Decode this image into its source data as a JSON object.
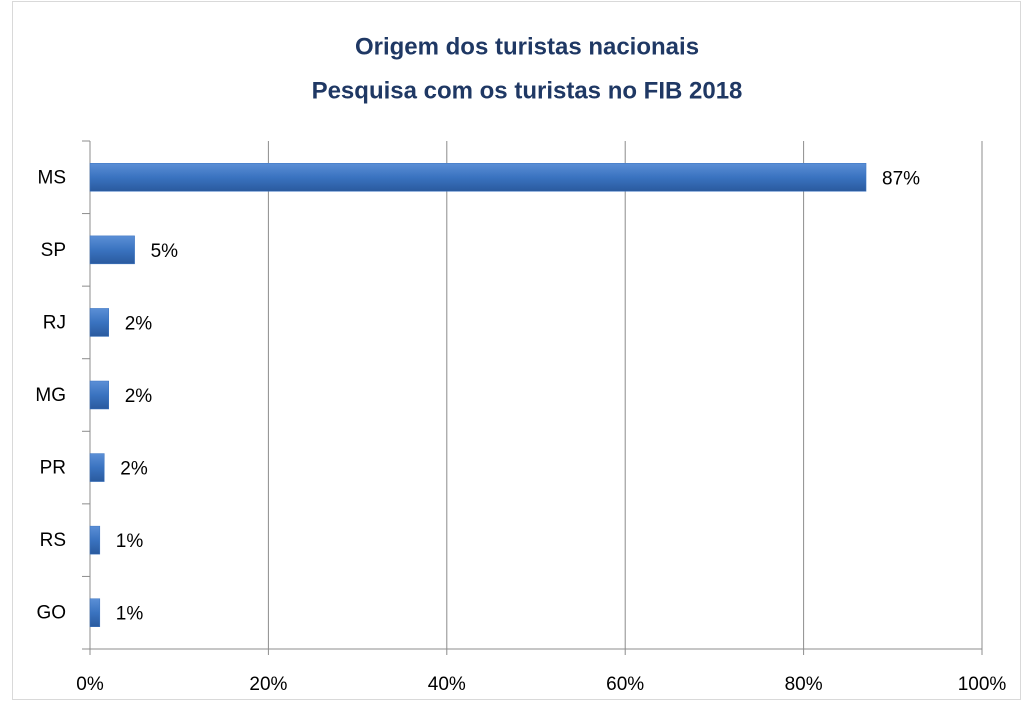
{
  "chart_data": {
    "type": "bar",
    "orientation": "horizontal",
    "title": "Origem dos turistas nacionais",
    "subtitle": "Pesquisa com os turistas no FIB 2018",
    "categories": [
      "MS",
      "SP",
      "RJ",
      "MG",
      "PR",
      "RS",
      "GO"
    ],
    "values": [
      87,
      5,
      2.1,
      2.1,
      1.6,
      1.1,
      1.1
    ],
    "value_labels": [
      "87%",
      "5%",
      "2%",
      "2%",
      "2%",
      "1%",
      "1%"
    ],
    "color": "#3a73c0",
    "xlim": [
      0,
      100
    ],
    "xticks": [
      {
        "value": 0,
        "label": "0%"
      },
      {
        "value": 20,
        "label": "20%"
      },
      {
        "value": 40,
        "label": "40%"
      },
      {
        "value": 60,
        "label": "60%"
      },
      {
        "value": 80,
        "label": "80%"
      },
      {
        "value": 100,
        "label": "100%"
      }
    ],
    "grid": true
  }
}
